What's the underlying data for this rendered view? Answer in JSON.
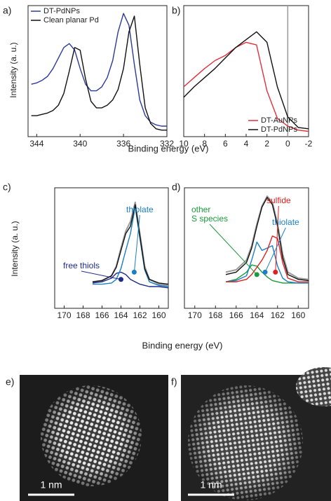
{
  "chart_data": [
    {
      "type": "line",
      "panel_label": "a)",
      "xlabel": "Binding energy (eV)",
      "ylabel": "Intensity (a. u.)",
      "x": [
        344.5,
        344,
        343.5,
        343,
        342.5,
        342,
        341.5,
        341,
        340.5,
        340,
        339.5,
        339,
        338.5,
        338,
        337.5,
        337,
        336.5,
        336,
        335.5,
        335,
        334.5,
        334,
        333.5,
        333,
        332.5,
        332
      ],
      "series": [
        {
          "name": "DT-PdNPs",
          "color": "#2b3a9a",
          "values": [
            0.4,
            0.41,
            0.43,
            0.46,
            0.52,
            0.6,
            0.68,
            0.71,
            0.66,
            0.52,
            0.4,
            0.35,
            0.35,
            0.38,
            0.45,
            0.58,
            0.8,
            0.94,
            0.85,
            0.55,
            0.28,
            0.16,
            0.11,
            0.09,
            0.08,
            0.08
          ]
        },
        {
          "name": "Clean planar Pd",
          "color": "#111111",
          "values": [
            0.16,
            0.16,
            0.17,
            0.18,
            0.2,
            0.24,
            0.33,
            0.5,
            0.68,
            0.66,
            0.44,
            0.27,
            0.22,
            0.22,
            0.24,
            0.28,
            0.36,
            0.52,
            0.8,
            0.92,
            0.55,
            0.22,
            0.1,
            0.06,
            0.05,
            0.05
          ]
        }
      ],
      "xlim": [
        344.8,
        332
      ],
      "ylim": [
        0,
        1
      ],
      "xticks": [
        344,
        340,
        336,
        332
      ],
      "legend": "upper left"
    },
    {
      "type": "line",
      "panel_label": "b)",
      "x": [
        10,
        9,
        8,
        7,
        6,
        5,
        4,
        3,
        2,
        1,
        0,
        -1,
        -2
      ],
      "series": [
        {
          "name": "DT-AuNPs",
          "color": "#e0303c",
          "values": [
            0.38,
            0.45,
            0.52,
            0.58,
            0.62,
            0.68,
            0.72,
            0.7,
            0.35,
            0.14,
            0.08,
            0.05,
            0.04
          ]
        },
        {
          "name": "DT-PdNPs",
          "color": "#111111",
          "values": [
            0.3,
            0.38,
            0.45,
            0.52,
            0.6,
            0.68,
            0.74,
            0.8,
            0.72,
            0.38,
            0.15,
            0.07,
            0.06
          ]
        }
      ],
      "xlim": [
        10,
        -2
      ],
      "ylim": [
        0,
        1
      ],
      "xticks": [
        10,
        8,
        6,
        4,
        2,
        0,
        -2
      ],
      "vline": 0,
      "legend": "lower right"
    },
    {
      "type": "line",
      "panel_label": "c)",
      "xlabel": "Binding energy (eV)",
      "ylabel": "Intensity (a. u.)",
      "x": [
        167,
        166,
        165,
        164.5,
        164,
        163.5,
        163,
        162.5,
        162,
        161.5,
        161,
        160,
        159
      ],
      "series": [
        {
          "color": "#9a9a9a",
          "values": [
            0.22,
            0.23,
            0.27,
            0.35,
            0.5,
            0.64,
            0.72,
            0.88,
            0.62,
            0.35,
            0.24,
            0.2,
            0.19
          ]
        },
        {
          "color": "#1f2a8a",
          "values": [
            0.21,
            0.22,
            0.25,
            0.29,
            0.3,
            0.28,
            0.24,
            0.22,
            0.2,
            0.19,
            0.18,
            0.18,
            0.17
          ]
        },
        {
          "color": "#1a7fc4",
          "values": [
            0.2,
            0.2,
            0.21,
            0.24,
            0.33,
            0.48,
            0.62,
            0.84,
            0.58,
            0.32,
            0.22,
            0.19,
            0.18
          ]
        },
        {
          "color": "#111111",
          "values": [
            0.22,
            0.23,
            0.27,
            0.34,
            0.48,
            0.62,
            0.68,
            0.86,
            0.6,
            0.33,
            0.24,
            0.21,
            0.2
          ]
        }
      ],
      "annotations": [
        {
          "text": "free thiols",
          "color": "#1f2a8a"
        },
        {
          "text": "thiolate",
          "color": "#1a7fc4"
        }
      ],
      "xlim": [
        171,
        159
      ],
      "ylim": [
        0,
        1
      ],
      "xticks": [
        170,
        168,
        166,
        164,
        162,
        160
      ]
    },
    {
      "type": "line",
      "panel_label": "d)",
      "x": [
        167,
        166,
        165,
        164.5,
        164,
        163.5,
        163,
        162.5,
        162,
        161.5,
        161,
        160,
        159
      ],
      "series": [
        {
          "color": "#9a9a9a",
          "values": [
            0.3,
            0.32,
            0.4,
            0.52,
            0.7,
            0.85,
            0.93,
            0.88,
            0.7,
            0.45,
            0.3,
            0.25,
            0.24
          ]
        },
        {
          "color": "#1a9a3a",
          "values": [
            0.22,
            0.24,
            0.3,
            0.36,
            0.35,
            0.3,
            0.26,
            0.23,
            0.22,
            0.21,
            0.21,
            0.21,
            0.21
          ]
        },
        {
          "color": "#1a7fc4",
          "values": [
            0.22,
            0.23,
            0.27,
            0.4,
            0.55,
            0.48,
            0.5,
            0.52,
            0.35,
            0.25,
            0.22,
            0.21,
            0.21
          ]
        },
        {
          "color": "#e02020",
          "values": [
            0.22,
            0.22,
            0.24,
            0.28,
            0.34,
            0.4,
            0.48,
            0.6,
            0.58,
            0.38,
            0.25,
            0.22,
            0.22
          ]
        },
        {
          "color": "#111111",
          "values": [
            0.28,
            0.3,
            0.38,
            0.5,
            0.68,
            0.84,
            0.92,
            0.86,
            0.68,
            0.42,
            0.28,
            0.24,
            0.23
          ]
        }
      ],
      "annotations": [
        {
          "text": "other",
          "color": "#1a9a3a"
        },
        {
          "text": "S species",
          "color": "#1a9a3a"
        },
        {
          "text": "sulfide",
          "color": "#e02020"
        },
        {
          "text": "thiolate",
          "color": "#1a7fc4"
        }
      ],
      "xlim": [
        171,
        159
      ],
      "ylim": [
        0,
        1
      ],
      "xticks": [
        170,
        168,
        166,
        164,
        162,
        160
      ]
    }
  ],
  "images": [
    {
      "panel_label": "e)",
      "scale_bar": "1 nm"
    },
    {
      "panel_label": "f)",
      "scale_bar": "1 nm"
    }
  ]
}
